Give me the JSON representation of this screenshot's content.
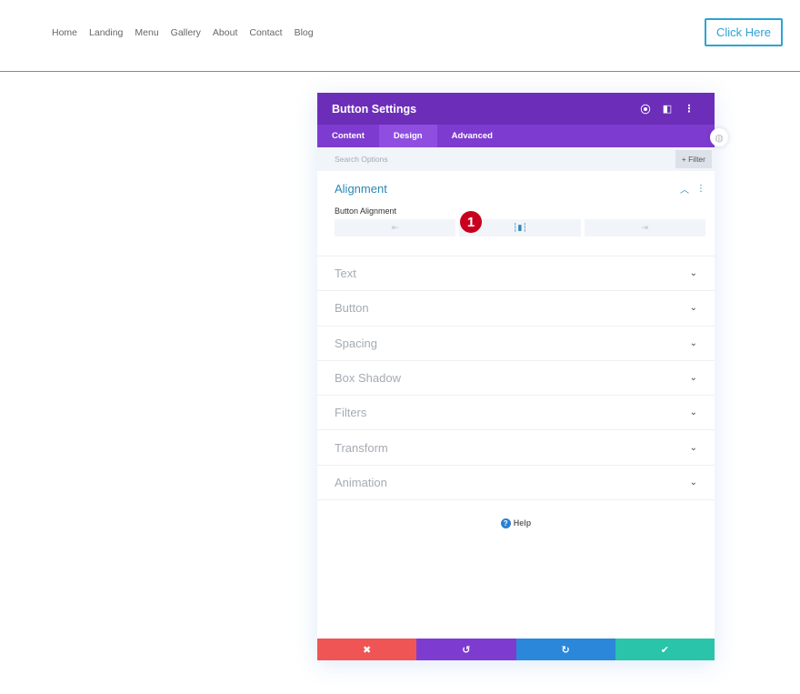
{
  "nav": {
    "items": [
      "Home",
      "Landing",
      "Menu",
      "Gallery",
      "About",
      "Contact",
      "Blog"
    ],
    "cta": "Click Here"
  },
  "panel": {
    "title": "Button Settings",
    "icons": [
      "focus-icon",
      "split-view-icon",
      "more-icon"
    ],
    "tabs": [
      "Content",
      "Design",
      "Advanced"
    ],
    "active_tab": "Design",
    "search_placeholder": "Search Options",
    "filter": "+ Filter",
    "alignment": {
      "title": "Alignment",
      "field_label": "Button Alignment",
      "options": [
        "left",
        "center",
        "right"
      ],
      "selected": "center",
      "badge": "1"
    },
    "sections": [
      "Text",
      "Button",
      "Spacing",
      "Box Shadow",
      "Filters",
      "Transform",
      "Animation"
    ],
    "help": "Help"
  },
  "colors": {
    "header": "#6c2eb9",
    "tabs": "#7e3bd0",
    "cancel": "#ef5555",
    "undo": "#7e3bd0",
    "redo": "#2b87da",
    "save": "#29c4a9",
    "accent": "#2ea3d3"
  }
}
